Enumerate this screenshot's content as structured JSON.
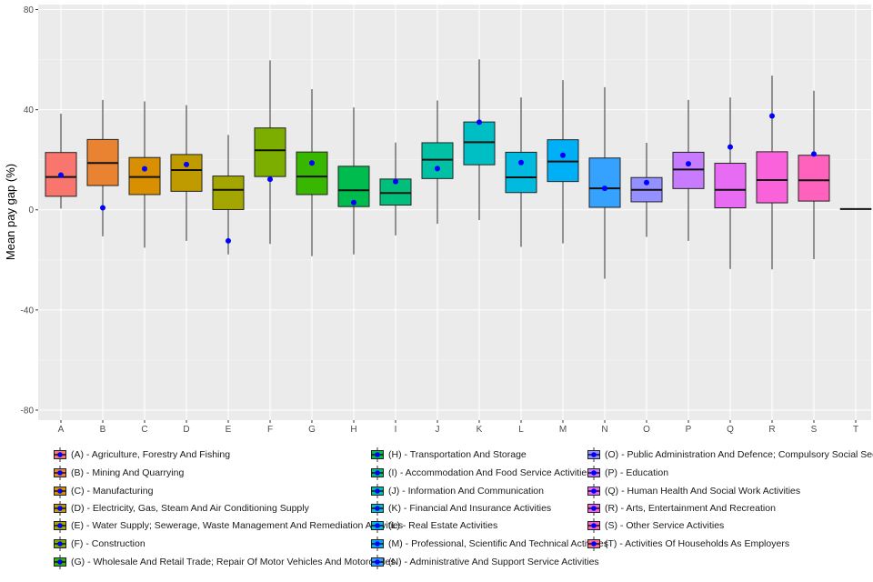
{
  "chart_data": {
    "type": "boxplot",
    "title": "",
    "xlabel": "",
    "ylabel": "Mean pay gap (%)",
    "ylim": [
      -84,
      82
    ],
    "yticks": [
      -80,
      -40,
      0,
      40,
      80
    ],
    "grid": true,
    "legend_position": "bottom",
    "mean_marker_color": "#0000FF",
    "categories": [
      "A",
      "B",
      "C",
      "D",
      "E",
      "F",
      "G",
      "H",
      "I",
      "J",
      "K",
      "L",
      "M",
      "N",
      "O",
      "P",
      "Q",
      "R",
      "S",
      "T"
    ],
    "legend": [
      "(A) - Agriculture, Forestry And Fishing",
      "(B) - Mining And Quarrying",
      "(C) - Manufacturing",
      "(D) - Electricity, Gas, Steam And Air Conditioning Supply",
      "(E) - Water Supply; Sewerage, Waste Management And Remediation Activities",
      "(F) - Construction",
      "(G) - Wholesale And Retail Trade; Repair Of Motor Vehicles And Motorcycles",
      "(H) - Transportation And Storage",
      "(I) - Accommodation And Food Service Activities",
      "(J) - Information And Communication",
      "(K) - Financial And Insurance Activities",
      "(L) - Real Estate Activities",
      "(M) - Professional, Scientific And Technical Activities",
      "(N) - Administrative And Support Service Activities",
      "(O) - Public Administration And Defence; Compulsory Social Security",
      "(P) - Education",
      "(Q) - Human Health And Social Work Activities",
      "(R) - Arts, Entertainment And Recreation",
      "(S) - Other Service Activities",
      "(T) - Activities Of Households As Employers"
    ],
    "colors": [
      "#F8766D",
      "#EA8331",
      "#D89000",
      "#C09B00",
      "#A3A500",
      "#7CAE00",
      "#39B600",
      "#00BB4E",
      "#00BF7D",
      "#00C1A3",
      "#00BFC4",
      "#00BAE0",
      "#00B0F6",
      "#35A2FF",
      "#9590FF",
      "#C77CFF",
      "#E76BF3",
      "#FA62DB",
      "#FF62BC",
      "#FF6C91"
    ],
    "boxes": [
      {
        "min": 0.5,
        "q1": 5.4,
        "median": 13.1,
        "q3": 22.9,
        "max": 38.4,
        "mean": 13.9
      },
      {
        "min": -10.6,
        "q1": 9.7,
        "median": 18.7,
        "q3": 28.1,
        "max": 43.9,
        "mean": 0.8
      },
      {
        "min": -15.1,
        "q1": 6.1,
        "median": 13.1,
        "q3": 20.9,
        "max": 43.3,
        "mean": 16.4
      },
      {
        "min": -12.4,
        "q1": 7.4,
        "median": 15.9,
        "q3": 22.1,
        "max": 41.8,
        "mean": 18.1
      },
      {
        "min": -17.8,
        "q1": 0.1,
        "median": 8.0,
        "q3": 13.5,
        "max": 29.9,
        "mean": -12.4
      },
      {
        "min": -13.6,
        "q1": 13.3,
        "median": 23.8,
        "q3": 32.7,
        "max": 59.7,
        "mean": 12.2
      },
      {
        "min": -18.5,
        "q1": 6.1,
        "median": 13.3,
        "q3": 23.1,
        "max": 48.2,
        "mean": 18.7
      },
      {
        "min": -17.8,
        "q1": 1.3,
        "median": 7.8,
        "q3": 17.4,
        "max": 40.9,
        "mean": 2.9
      },
      {
        "min": -10.2,
        "q1": 1.9,
        "median": 6.7,
        "q3": 12.3,
        "max": 26.9,
        "mean": 11.3
      },
      {
        "min": -5.6,
        "q1": 12.5,
        "median": 20.0,
        "q3": 26.8,
        "max": 43.7,
        "mean": 16.5
      },
      {
        "min": -4.1,
        "q1": 18.0,
        "median": 27.0,
        "q3": 35.1,
        "max": 60.1,
        "mean": 35.0
      },
      {
        "min": -14.8,
        "q1": 6.9,
        "median": 13.0,
        "q3": 23.0,
        "max": 44.9,
        "mean": 18.9
      },
      {
        "min": -13.4,
        "q1": 11.3,
        "median": 19.3,
        "q3": 28.0,
        "max": 51.8,
        "mean": 21.8
      },
      {
        "min": -27.5,
        "q1": 1.0,
        "median": 8.6,
        "q3": 20.7,
        "max": 49.0,
        "mean": 8.6
      },
      {
        "min": -10.8,
        "q1": 3.2,
        "median": 8.0,
        "q3": 12.9,
        "max": 26.8,
        "mean": 10.9
      },
      {
        "min": -12.4,
        "q1": 8.5,
        "median": 16.1,
        "q3": 23.0,
        "max": 43.9,
        "mean": 18.4
      },
      {
        "min": -23.6,
        "q1": 0.8,
        "median": 8.0,
        "q3": 18.6,
        "max": 44.9,
        "mean": 25.1
      },
      {
        "min": -23.8,
        "q1": 2.8,
        "median": 11.9,
        "q3": 23.2,
        "max": 53.6,
        "mean": 37.5
      },
      {
        "min": -19.7,
        "q1": 3.5,
        "median": 11.8,
        "q3": 21.8,
        "max": 47.6,
        "mean": 22.3
      },
      {
        "min": 0.3,
        "q1": 0.3,
        "median": 0.3,
        "q3": 0.3,
        "max": 0.3,
        "mean": null
      }
    ]
  }
}
